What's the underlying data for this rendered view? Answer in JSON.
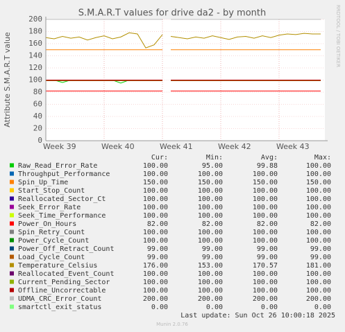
{
  "chart_data": {
    "type": "line",
    "title": "S.M.A.R.T values for drive da2 - by month",
    "y_label": "Attribute S.M.A.R.T value",
    "watermark": "RRDTOOL / TOBI OETIKER",
    "footer": "Munin 2.0.76",
    "last_update": "Last update: Sun Oct 26 10:00:18 2025",
    "legend_headers": [
      "Cur:",
      "Min:",
      "Avg:",
      "Max:"
    ],
    "grid": true,
    "xlim": [
      0,
      33.5
    ],
    "ylim": [
      0,
      200
    ],
    "yticks": [
      0,
      20,
      40,
      60,
      80,
      100,
      120,
      140,
      160,
      180,
      200
    ],
    "xticks": [
      {
        "value": 0,
        "label": "Week 39"
      },
      {
        "value": 7,
        "label": "Week 40"
      },
      {
        "value": 14,
        "label": "Week 41"
      },
      {
        "value": 21,
        "label": "Week 42"
      },
      {
        "value": 28,
        "label": "Week 43"
      }
    ],
    "x": [
      0,
      1,
      2,
      3,
      4,
      5,
      6,
      7,
      8,
      9,
      10,
      11,
      12,
      13,
      14,
      14.5,
      15,
      16,
      17,
      18,
      19,
      20,
      21,
      22,
      23,
      24,
      25,
      26,
      27,
      28,
      29,
      30,
      31,
      32,
      33
    ],
    "series": [
      {
        "name": "Raw_Read_Error_Rate",
        "color": "#00cc00",
        "cur": "100.00",
        "min": "95.00",
        "avg": "99.88",
        "max": "100.00",
        "values": [
          100,
          100,
          96,
          100,
          100,
          100,
          100,
          100,
          100,
          95,
          100,
          100,
          100,
          100,
          100,
          null,
          100,
          100,
          100,
          100,
          100,
          100,
          100,
          100,
          100,
          100,
          100,
          100,
          100,
          100,
          100,
          100,
          100,
          100,
          100
        ]
      },
      {
        "name": "Throughput_Performance",
        "color": "#0066b3",
        "cur": "100.00",
        "min": "100.00",
        "avg": "100.00",
        "max": "100.00",
        "values": [
          100,
          100,
          100,
          100,
          100,
          100,
          100,
          100,
          100,
          100,
          100,
          100,
          100,
          100,
          100,
          null,
          100,
          100,
          100,
          100,
          100,
          100,
          100,
          100,
          100,
          100,
          100,
          100,
          100,
          100,
          100,
          100,
          100,
          100,
          100
        ]
      },
      {
        "name": "Spin_Up_Time",
        "color": "#ff8000",
        "cur": "150.00",
        "min": "150.00",
        "avg": "150.00",
        "max": "150.00",
        "values": [
          150,
          150,
          150,
          150,
          150,
          150,
          150,
          150,
          150,
          150,
          150,
          150,
          150,
          150,
          150,
          null,
          150,
          150,
          150,
          150,
          150,
          150,
          150,
          150,
          150,
          150,
          150,
          150,
          150,
          150,
          150,
          150,
          150,
          150,
          150
        ]
      },
      {
        "name": "Start_Stop_Count",
        "color": "#ffcc00",
        "cur": "100.00",
        "min": "100.00",
        "avg": "100.00",
        "max": "100.00",
        "values": [
          100,
          100,
          100,
          100,
          100,
          100,
          100,
          100,
          100,
          100,
          100,
          100,
          100,
          100,
          100,
          null,
          100,
          100,
          100,
          100,
          100,
          100,
          100,
          100,
          100,
          100,
          100,
          100,
          100,
          100,
          100,
          100,
          100,
          100,
          100
        ]
      },
      {
        "name": "Reallocated_Sector_Ct",
        "color": "#330099",
        "cur": "100.00",
        "min": "100.00",
        "avg": "100.00",
        "max": "100.00",
        "values": [
          100,
          100,
          100,
          100,
          100,
          100,
          100,
          100,
          100,
          100,
          100,
          100,
          100,
          100,
          100,
          null,
          100,
          100,
          100,
          100,
          100,
          100,
          100,
          100,
          100,
          100,
          100,
          100,
          100,
          100,
          100,
          100,
          100,
          100,
          100
        ]
      },
      {
        "name": "Seek_Error_Rate",
        "color": "#990099",
        "cur": "100.00",
        "min": "100.00",
        "avg": "100.00",
        "max": "100.00",
        "values": [
          100,
          100,
          100,
          100,
          100,
          100,
          100,
          100,
          100,
          100,
          100,
          100,
          100,
          100,
          100,
          null,
          100,
          100,
          100,
          100,
          100,
          100,
          100,
          100,
          100,
          100,
          100,
          100,
          100,
          100,
          100,
          100,
          100,
          100,
          100
        ]
      },
      {
        "name": "Seek_Time_Performance",
        "color": "#ccff00",
        "cur": "100.00",
        "min": "100.00",
        "avg": "100.00",
        "max": "100.00",
        "values": [
          100,
          100,
          100,
          100,
          100,
          100,
          100,
          100,
          100,
          100,
          100,
          100,
          100,
          100,
          100,
          null,
          100,
          100,
          100,
          100,
          100,
          100,
          100,
          100,
          100,
          100,
          100,
          100,
          100,
          100,
          100,
          100,
          100,
          100,
          100
        ]
      },
      {
        "name": "Power_On_Hours",
        "color": "#ff0000",
        "cur": "82.00",
        "min": "82.00",
        "avg": "82.00",
        "max": "82.00",
        "values": [
          82,
          82,
          82,
          82,
          82,
          82,
          82,
          82,
          82,
          82,
          82,
          82,
          82,
          82,
          82,
          null,
          82,
          82,
          82,
          82,
          82,
          82,
          82,
          82,
          82,
          82,
          82,
          82,
          82,
          82,
          82,
          82,
          82,
          82,
          82
        ]
      },
      {
        "name": "Spin_Retry_Count",
        "color": "#808080",
        "cur": "100.00",
        "min": "100.00",
        "avg": "100.00",
        "max": "100.00",
        "values": [
          100,
          100,
          100,
          100,
          100,
          100,
          100,
          100,
          100,
          100,
          100,
          100,
          100,
          100,
          100,
          null,
          100,
          100,
          100,
          100,
          100,
          100,
          100,
          100,
          100,
          100,
          100,
          100,
          100,
          100,
          100,
          100,
          100,
          100,
          100
        ]
      },
      {
        "name": "Power_Cycle_Count",
        "color": "#008f00",
        "cur": "100.00",
        "min": "100.00",
        "avg": "100.00",
        "max": "100.00",
        "values": [
          100,
          100,
          100,
          100,
          100,
          100,
          100,
          100,
          100,
          100,
          100,
          100,
          100,
          100,
          100,
          null,
          100,
          100,
          100,
          100,
          100,
          100,
          100,
          100,
          100,
          100,
          100,
          100,
          100,
          100,
          100,
          100,
          100,
          100,
          100
        ]
      },
      {
        "name": "Power_Off_Retract_Count",
        "color": "#00487d",
        "cur": "99.00",
        "min": "99.00",
        "avg": "99.00",
        "max": "99.00",
        "values": [
          99,
          99,
          99,
          99,
          99,
          99,
          99,
          99,
          99,
          99,
          99,
          99,
          99,
          99,
          99,
          null,
          99,
          99,
          99,
          99,
          99,
          99,
          99,
          99,
          99,
          99,
          99,
          99,
          99,
          99,
          99,
          99,
          99,
          99,
          99
        ]
      },
      {
        "name": "Load_Cycle_Count",
        "color": "#b35a00",
        "cur": "99.00",
        "min": "99.00",
        "avg": "99.00",
        "max": "99.00",
        "values": [
          99,
          99,
          99,
          99,
          99,
          99,
          99,
          99,
          99,
          99,
          99,
          99,
          99,
          99,
          99,
          null,
          99,
          99,
          99,
          99,
          99,
          99,
          99,
          99,
          99,
          99,
          99,
          99,
          99,
          99,
          99,
          99,
          99,
          99,
          99
        ]
      },
      {
        "name": "Temperature_Celsius",
        "color": "#b38f00",
        "cur": "176.00",
        "min": "153.00",
        "avg": "170.57",
        "max": "181.00",
        "values": [
          170,
          168,
          172,
          169,
          171,
          166,
          170,
          173,
          168,
          171,
          178,
          176,
          153,
          158,
          175,
          null,
          172,
          170,
          168,
          171,
          169,
          173,
          170,
          167,
          171,
          172,
          169,
          173,
          170,
          174,
          176,
          175,
          177,
          176,
          176
        ]
      },
      {
        "name": "Reallocated_Event_Count",
        "color": "#6b006b",
        "cur": "100.00",
        "min": "100.00",
        "avg": "100.00",
        "max": "100.00",
        "values": [
          100,
          100,
          100,
          100,
          100,
          100,
          100,
          100,
          100,
          100,
          100,
          100,
          100,
          100,
          100,
          null,
          100,
          100,
          100,
          100,
          100,
          100,
          100,
          100,
          100,
          100,
          100,
          100,
          100,
          100,
          100,
          100,
          100,
          100,
          100
        ]
      },
      {
        "name": "Current_Pending_Sector",
        "color": "#8fb300",
        "cur": "100.00",
        "min": "100.00",
        "avg": "100.00",
        "max": "100.00",
        "values": [
          100,
          100,
          100,
          100,
          100,
          100,
          100,
          100,
          100,
          100,
          100,
          100,
          100,
          100,
          100,
          null,
          100,
          100,
          100,
          100,
          100,
          100,
          100,
          100,
          100,
          100,
          100,
          100,
          100,
          100,
          100,
          100,
          100,
          100,
          100
        ]
      },
      {
        "name": "Offline_Uncorrectable",
        "color": "#b30000",
        "cur": "100.00",
        "min": "100.00",
        "avg": "100.00",
        "max": "100.00",
        "values": [
          100,
          100,
          100,
          100,
          100,
          100,
          100,
          100,
          100,
          100,
          100,
          100,
          100,
          100,
          100,
          null,
          100,
          100,
          100,
          100,
          100,
          100,
          100,
          100,
          100,
          100,
          100,
          100,
          100,
          100,
          100,
          100,
          100,
          100,
          100
        ]
      },
      {
        "name": "UDMA_CRC_Error_Count",
        "color": "#bebebe",
        "cur": "200.00",
        "min": "200.00",
        "avg": "200.00",
        "max": "200.00",
        "values": [
          200,
          200,
          200,
          200,
          200,
          200,
          200,
          200,
          200,
          200,
          200,
          200,
          200,
          200,
          200,
          null,
          200,
          200,
          200,
          200,
          200,
          200,
          200,
          200,
          200,
          200,
          200,
          200,
          200,
          200,
          200,
          200,
          200,
          200,
          200
        ]
      },
      {
        "name": "smartctl_exit_status",
        "color": "#80ff80",
        "cur": "0.00",
        "min": "0.00",
        "avg": "0.00",
        "max": "0.00",
        "values": [
          0,
          0,
          0,
          0,
          0,
          0,
          0,
          0,
          0,
          0,
          0,
          0,
          0,
          0,
          0,
          null,
          0,
          0,
          0,
          0,
          0,
          0,
          0,
          0,
          0,
          0,
          0,
          0,
          0,
          0,
          0,
          0,
          0,
          0,
          0
        ]
      }
    ]
  }
}
